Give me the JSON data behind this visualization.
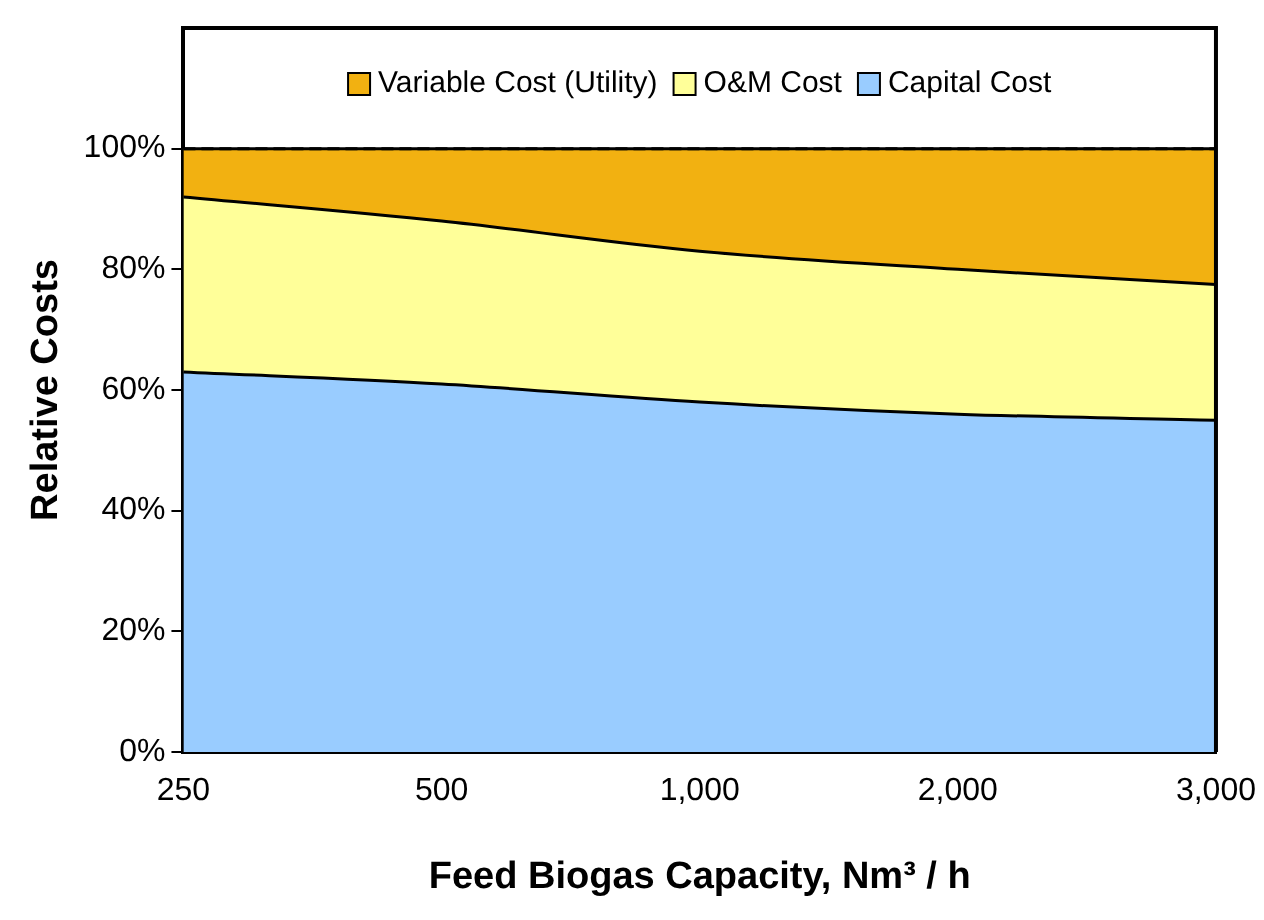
{
  "chart_data": {
    "type": "area",
    "stacked": true,
    "xlabel": "Feed Biogas Capacity, Nm³ / h",
    "ylabel": "Relative Costs",
    "categories": [
      "250",
      "500",
      "1,000",
      "2,000",
      "3,000"
    ],
    "series": [
      {
        "name": "Capital Cost",
        "color": "#99ccff",
        "values": [
          63,
          61,
          58,
          56,
          55
        ]
      },
      {
        "name": "O&M Cost",
        "color": "#ffff99",
        "values": [
          29,
          27,
          25,
          24,
          22.5
        ]
      },
      {
        "name": "Variable Cost (Utility)",
        "color": "#f2b111",
        "values": [
          8,
          12,
          17,
          20,
          22.5
        ]
      }
    ],
    "ylim": [
      0,
      120
    ],
    "yticks": [
      {
        "value": 0,
        "label": "0%"
      },
      {
        "value": 20,
        "label": "20%"
      },
      {
        "value": 40,
        "label": "40%"
      },
      {
        "value": 60,
        "label": "60%"
      },
      {
        "value": 80,
        "label": "80%"
      },
      {
        "value": 100,
        "label": "100%"
      }
    ],
    "ref_lines": [
      {
        "axis": "y",
        "value": 100,
        "line_style": "dashed",
        "color": "#000000"
      }
    ],
    "legend": "top",
    "grid": false
  }
}
